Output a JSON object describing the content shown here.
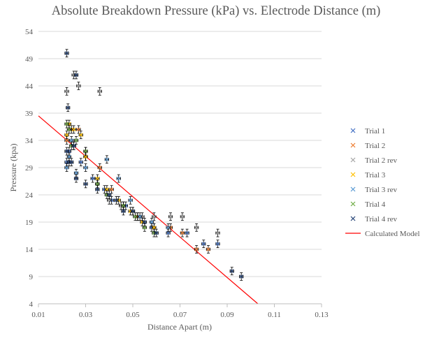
{
  "chart_data": {
    "type": "scatter",
    "title": "Absolute Breakdown Pressure (kPa) vs. Electrode Distance (m)",
    "xlabel": "Distance Apart (m)",
    "ylabel": "Pressure (kpa)",
    "xlim": [
      0.01,
      0.13
    ],
    "ylim": [
      4,
      54
    ],
    "x_ticks": [
      "0.01",
      "0.03",
      "0.05",
      "0.07",
      "0.09",
      "0.11",
      "0.13"
    ],
    "y_ticks": [
      "4",
      "9",
      "14",
      "19",
      "24",
      "29",
      "34",
      "39",
      "44",
      "49",
      "54"
    ],
    "grid": "horizontal",
    "legend_position": "right",
    "error_bars": {
      "x": 0.0008,
      "y": 0.7
    },
    "series": [
      {
        "name": "Trial 1",
        "color": "#4472c4",
        "marker": "x",
        "points": [
          [
            0.022,
            30
          ],
          [
            0.023,
            32
          ],
          [
            0.025,
            33
          ],
          [
            0.028,
            30
          ],
          [
            0.033,
            27
          ],
          [
            0.038,
            25
          ],
          [
            0.041,
            23
          ],
          [
            0.047,
            22
          ],
          [
            0.052,
            20
          ],
          [
            0.058,
            18
          ],
          [
            0.065,
            17
          ],
          [
            0.073,
            17
          ],
          [
            0.08,
            15
          ],
          [
            0.086,
            15
          ]
        ]
      },
      {
        "name": "Trial 2",
        "color": "#ed7d31",
        "marker": "x",
        "points": [
          [
            0.022,
            34
          ],
          [
            0.024,
            36
          ],
          [
            0.027,
            36
          ],
          [
            0.03,
            31
          ],
          [
            0.036,
            29
          ],
          [
            0.041,
            25
          ],
          [
            0.046,
            22
          ],
          [
            0.052,
            20
          ],
          [
            0.059,
            18
          ],
          [
            0.066,
            18
          ],
          [
            0.071,
            17
          ],
          [
            0.077,
            14
          ],
          [
            0.082,
            14
          ]
        ]
      },
      {
        "name": "Trial 2 rev",
        "color": "#a5a5a5",
        "marker": "x",
        "points": [
          [
            0.022,
            43
          ],
          [
            0.025,
            46
          ],
          [
            0.027,
            44
          ],
          [
            0.03,
            32
          ],
          [
            0.035,
            26
          ],
          [
            0.036,
            43
          ],
          [
            0.04,
            23
          ],
          [
            0.045,
            22
          ],
          [
            0.05,
            21
          ],
          [
            0.054,
            20
          ],
          [
            0.059,
            20
          ],
          [
            0.066,
            20
          ],
          [
            0.071,
            20
          ],
          [
            0.077,
            18
          ],
          [
            0.086,
            17
          ]
        ]
      },
      {
        "name": "Trial 3",
        "color": "#ffc000",
        "marker": "x",
        "points": [
          [
            0.022,
            35
          ],
          [
            0.023,
            37
          ],
          [
            0.025,
            36
          ],
          [
            0.028,
            35
          ],
          [
            0.03,
            31
          ],
          [
            0.035,
            27
          ],
          [
            0.039,
            25
          ],
          [
            0.044,
            23
          ],
          [
            0.049,
            21
          ],
          [
            0.054,
            19
          ],
          [
            0.059,
            18
          ]
        ]
      },
      {
        "name": "Trial 3 rev",
        "color": "#5b9bd5",
        "marker": "x",
        "points": [
          [
            0.022,
            29
          ],
          [
            0.023,
            31
          ],
          [
            0.024,
            34
          ],
          [
            0.026,
            28
          ],
          [
            0.03,
            29
          ],
          [
            0.039,
            30.5
          ],
          [
            0.044,
            27
          ],
          [
            0.049,
            23
          ],
          [
            0.053,
            20
          ],
          [
            0.058,
            19
          ],
          [
            0.065,
            18
          ]
        ]
      },
      {
        "name": "Trial 4",
        "color": "#70ad47",
        "marker": "x",
        "points": [
          [
            0.022,
            37
          ],
          [
            0.023,
            36
          ],
          [
            0.024,
            33
          ],
          [
            0.026,
            34
          ],
          [
            0.03,
            32
          ],
          [
            0.035,
            26
          ],
          [
            0.039,
            24
          ],
          [
            0.046,
            22
          ],
          [
            0.051,
            20
          ],
          [
            0.055,
            18
          ],
          [
            0.059,
            17
          ]
        ]
      },
      {
        "name": "Trial 4 rev",
        "color": "#264478",
        "marker": "x",
        "points": [
          [
            0.022,
            50
          ],
          [
            0.0225,
            40
          ],
          [
            0.022,
            32
          ],
          [
            0.023,
            30
          ],
          [
            0.024,
            30
          ],
          [
            0.025,
            33
          ],
          [
            0.026,
            46
          ],
          [
            0.026,
            27
          ],
          [
            0.03,
            26
          ],
          [
            0.035,
            25
          ],
          [
            0.04,
            24
          ],
          [
            0.043,
            23
          ],
          [
            0.046,
            21
          ],
          [
            0.05,
            21
          ],
          [
            0.055,
            19
          ],
          [
            0.06,
            17
          ],
          [
            0.092,
            10
          ],
          [
            0.096,
            9
          ]
        ]
      }
    ],
    "model": {
      "name": "Calculated Model",
      "color": "#ff0000",
      "x": [
        0.01,
        0.103
      ],
      "y": [
        38.5,
        4
      ]
    },
    "legend": [
      "Trial 1",
      "Trial 2",
      "Trial 2 rev",
      "Trial 3",
      "Trial 3 rev",
      "Trial 4",
      "Trial 4 rev",
      "Calculated Model"
    ]
  }
}
